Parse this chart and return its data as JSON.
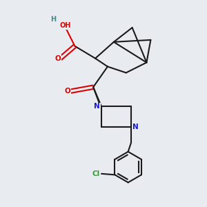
{
  "background_color": "#e8ecf0",
  "bond_color": "#1a1a1a",
  "atom_colors": {
    "O": "#dd0000",
    "N": "#1a1acc",
    "Cl": "#3a9a3a",
    "H": "#4a8888",
    "C": "#1a1a1a"
  },
  "figsize": [
    3.0,
    3.0
  ],
  "dpi": 100
}
